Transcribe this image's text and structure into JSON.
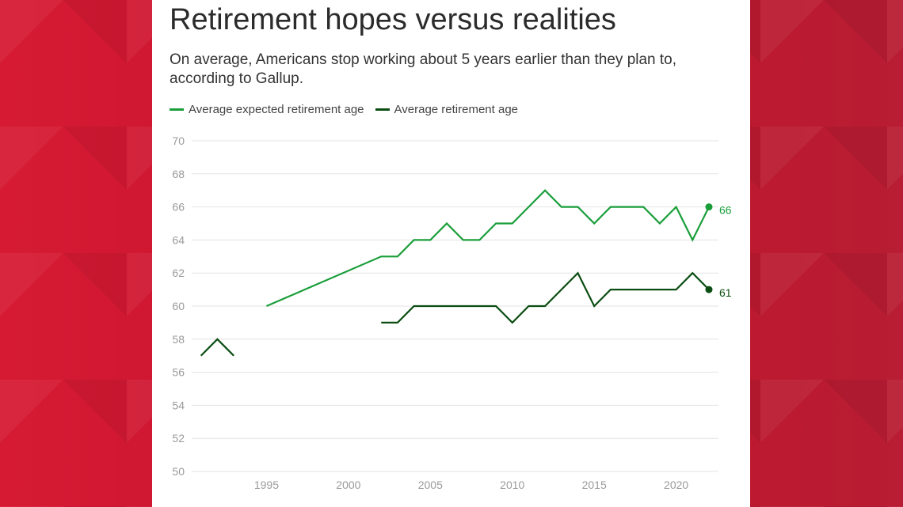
{
  "page": {
    "title": "Retirement hopes versus realities",
    "subtitle": "On average, Americans stop working about 5 years earlier than they plan to, according to Gallup."
  },
  "colors": {
    "background": "#c8102e",
    "expected": "#1a9e3a",
    "actual": "#0b4d12",
    "grid": "#e3e3e3"
  },
  "chart_data": {
    "type": "line",
    "title": "Retirement hopes versus realities",
    "subtitle": "On average, Americans stop working about 5 years earlier than they plan to, according to Gallup.",
    "xlabel": "",
    "ylabel": "",
    "xlim": [
      1990,
      2023
    ],
    "ylim": [
      50,
      70
    ],
    "x_ticks": [
      1995,
      2000,
      2005,
      2010,
      2015,
      2020
    ],
    "y_ticks": [
      50,
      52,
      54,
      56,
      58,
      60,
      62,
      64,
      66,
      68,
      70
    ],
    "grid": true,
    "legend_position": "top-left",
    "series": [
      {
        "name": "Average expected retirement age",
        "color": "#1a9e3a",
        "end_label": "66",
        "segments": [
          [
            [
              1995,
              60
            ],
            [
              2002,
              63
            ],
            [
              2003,
              63
            ],
            [
              2004,
              64
            ],
            [
              2005,
              64
            ],
            [
              2006,
              65
            ],
            [
              2007,
              64
            ],
            [
              2008,
              64
            ],
            [
              2009,
              65
            ],
            [
              2010,
              65
            ],
            [
              2011,
              66
            ],
            [
              2012,
              67
            ],
            [
              2013,
              66
            ],
            [
              2014,
              66
            ],
            [
              2015,
              65
            ],
            [
              2016,
              66
            ],
            [
              2017,
              66
            ],
            [
              2018,
              66
            ],
            [
              2019,
              65
            ],
            [
              2020,
              66
            ],
            [
              2021,
              64
            ],
            [
              2022,
              66
            ]
          ]
        ]
      },
      {
        "name": "Average retirement age",
        "color": "#0b4d12",
        "end_label": "61",
        "segments": [
          [
            [
              1991,
              57
            ],
            [
              1992,
              58
            ],
            [
              1993,
              57
            ]
          ],
          [
            [
              2002,
              59
            ],
            [
              2003,
              59
            ],
            [
              2004,
              60
            ],
            [
              2005,
              60
            ],
            [
              2006,
              60
            ],
            [
              2007,
              60
            ],
            [
              2008,
              60
            ],
            [
              2009,
              60
            ],
            [
              2010,
              59
            ],
            [
              2011,
              60
            ],
            [
              2012,
              60
            ],
            [
              2013,
              61
            ],
            [
              2014,
              62
            ],
            [
              2015,
              60
            ],
            [
              2016,
              61
            ],
            [
              2017,
              61
            ],
            [
              2018,
              61
            ],
            [
              2019,
              61
            ],
            [
              2020,
              61
            ],
            [
              2021,
              62
            ],
            [
              2022,
              61
            ]
          ]
        ]
      }
    ]
  }
}
